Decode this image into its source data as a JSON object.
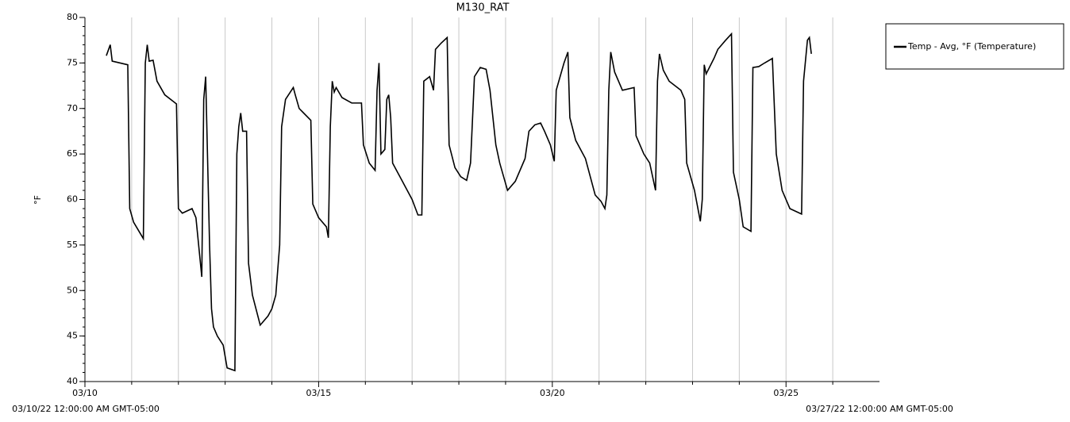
{
  "chart_data": {
    "type": "line",
    "title": "M130_RAT",
    "y_label": "°F",
    "legend": "right",
    "grid": true,
    "xlim": [
      {
        "value": "2022-03-10T00:00",
        "label": "03/10/22 12:00:00 AM GMT-05:00"
      },
      {
        "value": "2022-03-27T00:00",
        "label": "03/27/22 12:00:00 AM GMT-05:00"
      }
    ],
    "xticks": [
      {
        "value": "2022-03-10T00:00",
        "label": "03/10"
      },
      {
        "value": "2022-03-15T00:00",
        "label": "03/15"
      },
      {
        "value": "2022-03-20T00:00",
        "label": "03/20"
      },
      {
        "value": "2022-03-25T00:00",
        "label": "03/25"
      }
    ],
    "ylim": [
      40,
      80
    ],
    "yticks": [
      40,
      45,
      50,
      55,
      60,
      65,
      70,
      75,
      80
    ],
    "x": [
      "2022-03-10T11:00",
      "2022-03-10T13:00",
      "2022-03-10T14:00",
      "2022-03-10T22:00",
      "2022-03-10T23:00",
      "2022-03-11T01:00",
      "2022-03-11T06:00",
      "2022-03-11T07:00",
      "2022-03-11T08:00",
      "2022-03-11T09:00",
      "2022-03-11T11:00",
      "2022-03-11T13:00",
      "2022-03-11T17:00",
      "2022-03-11T23:00",
      "2022-03-12T00:00",
      "2022-03-12T02:00",
      "2022-03-12T07:00",
      "2022-03-12T09:00",
      "2022-03-12T12:00",
      "2022-03-12T13:00",
      "2022-03-12T14:00",
      "2022-03-12T16:00",
      "2022-03-12T17:00",
      "2022-03-12T18:00",
      "2022-03-12T20:00",
      "2022-03-12T23:00",
      "2022-03-13T01:00",
      "2022-03-13T05:00",
      "2022-03-13T06:00",
      "2022-03-13T07:00",
      "2022-03-13T08:00",
      "2022-03-13T09:00",
      "2022-03-13T11:00",
      "2022-03-13T12:00",
      "2022-03-13T14:00",
      "2022-03-13T18:00",
      "2022-03-13T22:00",
      "2022-03-14T00:00",
      "2022-03-14T02:00",
      "2022-03-14T04:00",
      "2022-03-14T05:00",
      "2022-03-14T07:00",
      "2022-03-14T11:00",
      "2022-03-14T12:00",
      "2022-03-14T14:00",
      "2022-03-14T20:00",
      "2022-03-14T21:00",
      "2022-03-15T00:00",
      "2022-03-15T04:00",
      "2022-03-15T05:00",
      "2022-03-15T06:00",
      "2022-03-15T07:00",
      "2022-03-15T08:00",
      "2022-03-15T09:00",
      "2022-03-15T12:00",
      "2022-03-15T17:00",
      "2022-03-15T22:00",
      "2022-03-15T23:00",
      "2022-03-16T02:00",
      "2022-03-16T05:00",
      "2022-03-16T06:00",
      "2022-03-16T07:00",
      "2022-03-16T08:00",
      "2022-03-16T10:00",
      "2022-03-16T11:00",
      "2022-03-16T12:00",
      "2022-03-16T13:00",
      "2022-03-16T14:00",
      "2022-03-16T19:00",
      "2022-03-17T00:00",
      "2022-03-17T03:00",
      "2022-03-17T05:00",
      "2022-03-17T06:00",
      "2022-03-17T09:00",
      "2022-03-17T11:00",
      "2022-03-17T12:00",
      "2022-03-17T15:00",
      "2022-03-17T18:00",
      "2022-03-17T19:00",
      "2022-03-17T22:00",
      "2022-03-18T01:00",
      "2022-03-18T04:00",
      "2022-03-18T06:00",
      "2022-03-18T08:00",
      "2022-03-18T11:00",
      "2022-03-18T14:00",
      "2022-03-18T16:00",
      "2022-03-18T19:00",
      "2022-03-18T21:00",
      "2022-03-19T01:00",
      "2022-03-19T05:00",
      "2022-03-19T10:00",
      "2022-03-19T12:00",
      "2022-03-19T15:00",
      "2022-03-19T18:00",
      "2022-03-19T20:00",
      "2022-03-19T23:00",
      "2022-03-20T01:00",
      "2022-03-20T02:00",
      "2022-03-20T06:00",
      "2022-03-20T08:00",
      "2022-03-20T09:00",
      "2022-03-20T12:00",
      "2022-03-20T17:00",
      "2022-03-20T22:00",
      "2022-03-21T01:00",
      "2022-03-21T03:00",
      "2022-03-21T04:00",
      "2022-03-21T05:00",
      "2022-03-21T06:00",
      "2022-03-21T08:00",
      "2022-03-21T12:00",
      "2022-03-21T18:00",
      "2022-03-21T19:00",
      "2022-03-21T23:00",
      "2022-03-22T02:00",
      "2022-03-22T05:00",
      "2022-03-22T06:00",
      "2022-03-22T07:00",
      "2022-03-22T09:00",
      "2022-03-22T12:00",
      "2022-03-22T18:00",
      "2022-03-22T20:00",
      "2022-03-22T21:00",
      "2022-03-23T01:00",
      "2022-03-23T04:00",
      "2022-03-23T05:00",
      "2022-03-23T06:00",
      "2022-03-23T07:00",
      "2022-03-23T11:00",
      "2022-03-23T13:00",
      "2022-03-23T17:00",
      "2022-03-23T20:00",
      "2022-03-23T21:00",
      "2022-03-24T00:00",
      "2022-03-24T02:00",
      "2022-03-24T06:00",
      "2022-03-24T07:00",
      "2022-03-24T10:00",
      "2022-03-24T13:00",
      "2022-03-24T17:00",
      "2022-03-24T19:00",
      "2022-03-24T22:00",
      "2022-03-25T02:00",
      "2022-03-25T08:00",
      "2022-03-25T09:00",
      "2022-03-25T11:00",
      "2022-03-25T12:00",
      "2022-03-25T13:00"
    ],
    "series": [
      {
        "name": "Temp - Avg, °F (Temperature)",
        "color": "#000000",
        "values": [
          75.8,
          77,
          75.2,
          74.8,
          59,
          57.5,
          55.7,
          75,
          77,
          75.2,
          75.3,
          73,
          71.5,
          70.5,
          59,
          58.5,
          59,
          58,
          51.5,
          71,
          73.5,
          55,
          48,
          46,
          45,
          44,
          41.5,
          41.2,
          65,
          68,
          69.5,
          67.5,
          67.5,
          53,
          49.5,
          46.2,
          47.2,
          48,
          49.5,
          55,
          68,
          71,
          72.3,
          71.5,
          70,
          68.7,
          59.5,
          58,
          57,
          55.8,
          68,
          73,
          71.8,
          72.3,
          71.2,
          70.6,
          70.6,
          66,
          64,
          63.2,
          72,
          75,
          65,
          65.5,
          71,
          71.5,
          69,
          64,
          62,
          60,
          58.3,
          58.3,
          73,
          73.5,
          72,
          76.5,
          77.2,
          77.8,
          66,
          63.5,
          62.5,
          62.1,
          64,
          73.5,
          74.5,
          74.3,
          72,
          66,
          64,
          61,
          62,
          64.5,
          67.5,
          68.2,
          68.4,
          67.5,
          66,
          64.2,
          72,
          75,
          76.2,
          69,
          66.5,
          64.5,
          60.5,
          59.8,
          59,
          60.5,
          72,
          76.2,
          74,
          72,
          72.3,
          67,
          65,
          64,
          61,
          73,
          76,
          74.2,
          73,
          72,
          71,
          64,
          61,
          57.6,
          60,
          74.8,
          73.8,
          75.5,
          76.5,
          77.5,
          78.2,
          63,
          60,
          57,
          56.5,
          74.5,
          74.6,
          75,
          75.5,
          65,
          61,
          59,
          58.4,
          73,
          77.5,
          77.8,
          76
        ]
      }
    ]
  }
}
